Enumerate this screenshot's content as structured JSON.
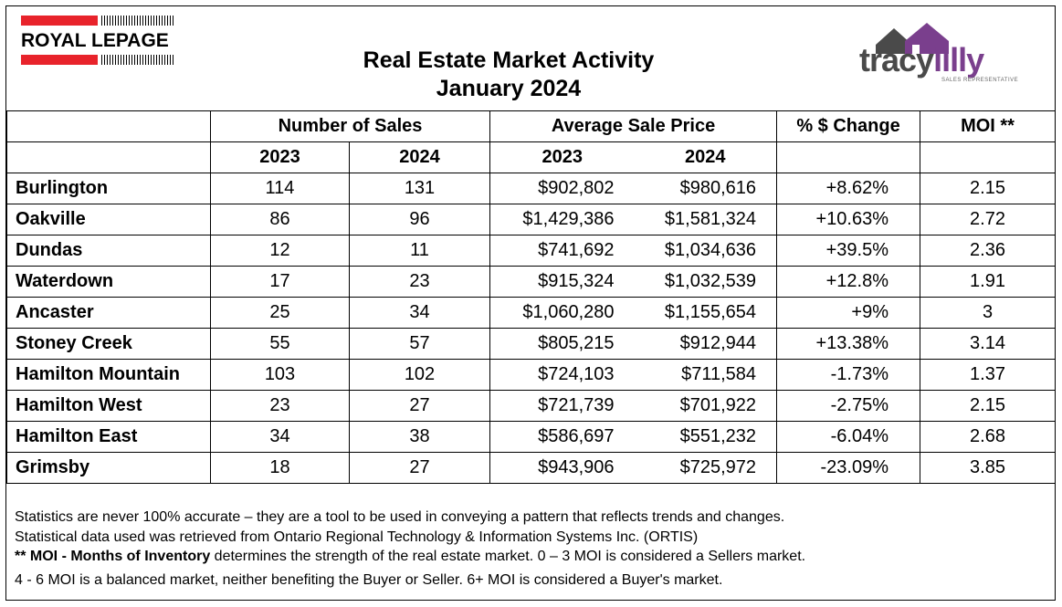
{
  "header": {
    "royal_lepage_logo": "ROYAL LEPAGE",
    "title_line1": "Real Estate Market Activity",
    "title_line2": "January 2024",
    "tracy_logo_part1": "tracy",
    "tracy_logo_part2": "lilly",
    "tracy_logo_sub": "SALES REPRESENTATIVE"
  },
  "table": {
    "group_headers": [
      "Number of Sales",
      "Average Sale Price",
      "% $ Change",
      "MOI **"
    ],
    "year_headers": [
      "2023",
      "2024",
      "2023",
      "2024"
    ],
    "rows": [
      {
        "area": "Burlington",
        "sales_2023": "114",
        "sales_2024": "131",
        "price_2023": "$902,802",
        "price_2024": "$980,616",
        "change": "+8.62%",
        "moi": "2.15"
      },
      {
        "area": "Oakville",
        "sales_2023": "86",
        "sales_2024": "96",
        "price_2023": "$1,429,386",
        "price_2024": "$1,581,324",
        "change": "+10.63%",
        "moi": "2.72"
      },
      {
        "area": "Dundas",
        "sales_2023": "12",
        "sales_2024": "11",
        "price_2023": "$741,692",
        "price_2024": "$1,034,636",
        "change": "+39.5%",
        "moi": "2.36"
      },
      {
        "area": "Waterdown",
        "sales_2023": "17",
        "sales_2024": "23",
        "price_2023": "$915,324",
        "price_2024": "$1,032,539",
        "change": "+12.8%",
        "moi": "1.91"
      },
      {
        "area": "Ancaster",
        "sales_2023": "25",
        "sales_2024": "34",
        "price_2023": "$1,060,280",
        "price_2024": "$1,155,654",
        "change": "+9%",
        "moi": "3"
      },
      {
        "area": "Stoney Creek",
        "sales_2023": "55",
        "sales_2024": "57",
        "price_2023": "$805,215",
        "price_2024": "$912,944",
        "change": "+13.38%",
        "moi": "3.14"
      },
      {
        "area": "Hamilton Mountain",
        "sales_2023": "103",
        "sales_2024": "102",
        "price_2023": "$724,103",
        "price_2024": "$711,584",
        "change": "-1.73%",
        "moi": "1.37"
      },
      {
        "area": "Hamilton West",
        "sales_2023": "23",
        "sales_2024": "27",
        "price_2023": "$721,739",
        "price_2024": "$701,922",
        "change": "-2.75%",
        "moi": "2.15"
      },
      {
        "area": "Hamilton East",
        "sales_2023": "34",
        "sales_2024": "38",
        "price_2023": "$586,697",
        "price_2024": "$551,232",
        "change": "-6.04%",
        "moi": "2.68"
      },
      {
        "area": "Grimsby",
        "sales_2023": "18",
        "sales_2024": "27",
        "price_2023": "$943,906",
        "price_2024": "$725,972",
        "change": "-23.09%",
        "moi": "3.85"
      }
    ]
  },
  "notes": {
    "line1": "Statistics are never 100% accurate – they are a tool to be used in conveying a pattern that reflects trends and changes.",
    "line2": "Statistical data used was retrieved from Ontario Regional Technology & Information Systems Inc. (ORTIS)",
    "line3_bold": "** MOI - Months of Inventory",
    "line3_rest": " determines the strength of the real estate market. 0 – 3 MOI is considered a Sellers market.",
    "line4": "4 - 6 MOI is a balanced market, neither benefiting the Buyer or Seller. 6+ MOI is considered a Buyer's market."
  },
  "colors": {
    "royal_lepage_red": "#e8232b",
    "tracy_gray": "#4a4a4a",
    "lilly_purple": "#7a3f8d"
  }
}
